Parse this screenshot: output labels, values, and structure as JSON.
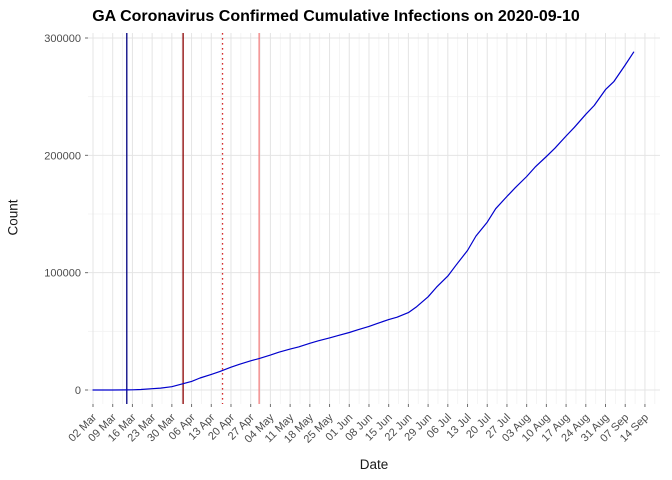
{
  "chart_data": {
    "type": "line",
    "title": "GA Coronavirus Confirmed Cumulative Infections on 2020-09-10",
    "xlabel": "Date",
    "ylabel": "Count",
    "x_unit": "days since first x tick (02 Mar)",
    "x_tick_interval_days": 7,
    "x_tick_labels": [
      "02 Mar",
      "09 Mar",
      "16 Mar",
      "23 Mar",
      "30 Mar",
      "06 Apr",
      "13 Apr",
      "20 Apr",
      "27 Apr",
      "04 May",
      "11 May",
      "18 May",
      "25 May",
      "01 Jun",
      "08 Jun",
      "15 Jun",
      "22 Jun",
      "29 Jun",
      "06 Jul",
      "13 Jul",
      "20 Jul",
      "27 Jul",
      "03 Aug",
      "10 Aug",
      "17 Aug",
      "24 Aug",
      "31 Aug",
      "07 Sep",
      "14 Sep"
    ],
    "y_tick_labels": [
      "0",
      "100000",
      "200000",
      "300000"
    ],
    "y_tick_values": [
      0,
      100000,
      200000,
      300000
    ],
    "y_minor_values": [
      50000,
      150000,
      250000
    ],
    "ylim": [
      0,
      300000
    ],
    "grid": "major and minor light gray gridlines on white background",
    "legend": "none",
    "series": [
      {
        "name": "cumulative-confirmed-line",
        "color": "#0000CD",
        "points": [
          [
            0,
            2
          ],
          [
            7,
            17
          ],
          [
            12,
            99
          ],
          [
            14,
            146
          ],
          [
            17,
            420
          ],
          [
            21,
            1097
          ],
          [
            24,
            1643
          ],
          [
            28,
            2809
          ],
          [
            31,
            4748
          ],
          [
            35,
            7314
          ],
          [
            38,
            10204
          ],
          [
            42,
            13315
          ],
          [
            45,
            15669
          ],
          [
            49,
            19407
          ],
          [
            52,
            21883
          ],
          [
            56,
            24854
          ],
          [
            59,
            26759
          ],
          [
            63,
            29711
          ],
          [
            66,
            32181
          ],
          [
            70,
            34848
          ],
          [
            73,
            36772
          ],
          [
            77,
            39801
          ],
          [
            80,
            41902
          ],
          [
            84,
            44421
          ],
          [
            87,
            46352
          ],
          [
            91,
            49000
          ],
          [
            94,
            51309
          ],
          [
            98,
            54242
          ],
          [
            101,
            56801
          ],
          [
            105,
            60030
          ],
          [
            108,
            62009
          ],
          [
            112,
            65928
          ],
          [
            115,
            71095
          ],
          [
            119,
            79417
          ],
          [
            122,
            87709
          ],
          [
            126,
            97064
          ],
          [
            129,
            106727
          ],
          [
            133,
            118926
          ],
          [
            136,
            131275
          ],
          [
            140,
            143000
          ],
          [
            143,
            154500
          ],
          [
            147,
            165000
          ],
          [
            150,
            172500
          ],
          [
            154,
            182000
          ],
          [
            157,
            190000
          ],
          [
            161,
            199000
          ],
          [
            164,
            206000
          ],
          [
            168,
            216500
          ],
          [
            171,
            224000
          ],
          [
            175,
            235000
          ],
          [
            178,
            242500
          ],
          [
            182,
            256000
          ],
          [
            185,
            263000
          ],
          [
            189,
            277000
          ],
          [
            192,
            288000
          ]
        ]
      }
    ],
    "vlines": [
      {
        "name": "vline-navy-solid",
        "x_day": 12,
        "color": "#000080",
        "style": "solid"
      },
      {
        "name": "vline-darkred-solid",
        "x_day": 32,
        "color": "#8B0000",
        "style": "solid"
      },
      {
        "name": "vline-red-dotted",
        "x_day": 46,
        "color": "#D42A2A",
        "style": "dotted"
      },
      {
        "name": "vline-pink-solid",
        "x_day": 59,
        "color": "#F08080",
        "style": "solid"
      }
    ]
  }
}
